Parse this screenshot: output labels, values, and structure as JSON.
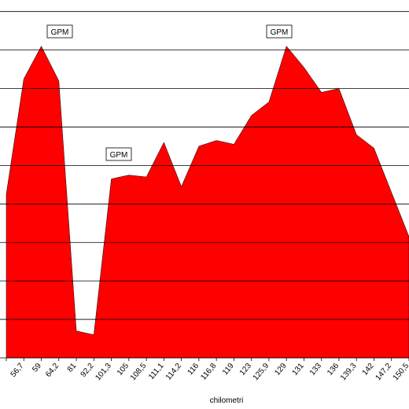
{
  "chart_data": {
    "type": "area",
    "x_label": "chilometri",
    "categories": [
      null,
      "56,7",
      "59",
      "64,2",
      "81",
      "92,2",
      "101,3",
      "105",
      "108,5",
      "111,1",
      "114,2",
      "116",
      "116,8",
      "119",
      "123",
      "125,9",
      "129",
      "131",
      "133",
      "136",
      "139,3",
      "142",
      "147,2",
      "150,5"
    ],
    "values": [
      4.25,
      7.25,
      8.1,
      7.2,
      0.7,
      0.6,
      4.65,
      4.75,
      4.7,
      5.6,
      4.45,
      5.5,
      5.65,
      5.55,
      6.3,
      6.65,
      8.1,
      7.55,
      6.9,
      7.0,
      5.8,
      5.45,
      4.3,
      3.15
    ],
    "color": "#ff0000",
    "ylim": [
      0,
      9.3
    ],
    "yticks": [
      0,
      1,
      2,
      3,
      4,
      5,
      6,
      7,
      8,
      9
    ],
    "grid": true,
    "annotations": [
      "GPM",
      "GPM",
      "GPM"
    ]
  }
}
